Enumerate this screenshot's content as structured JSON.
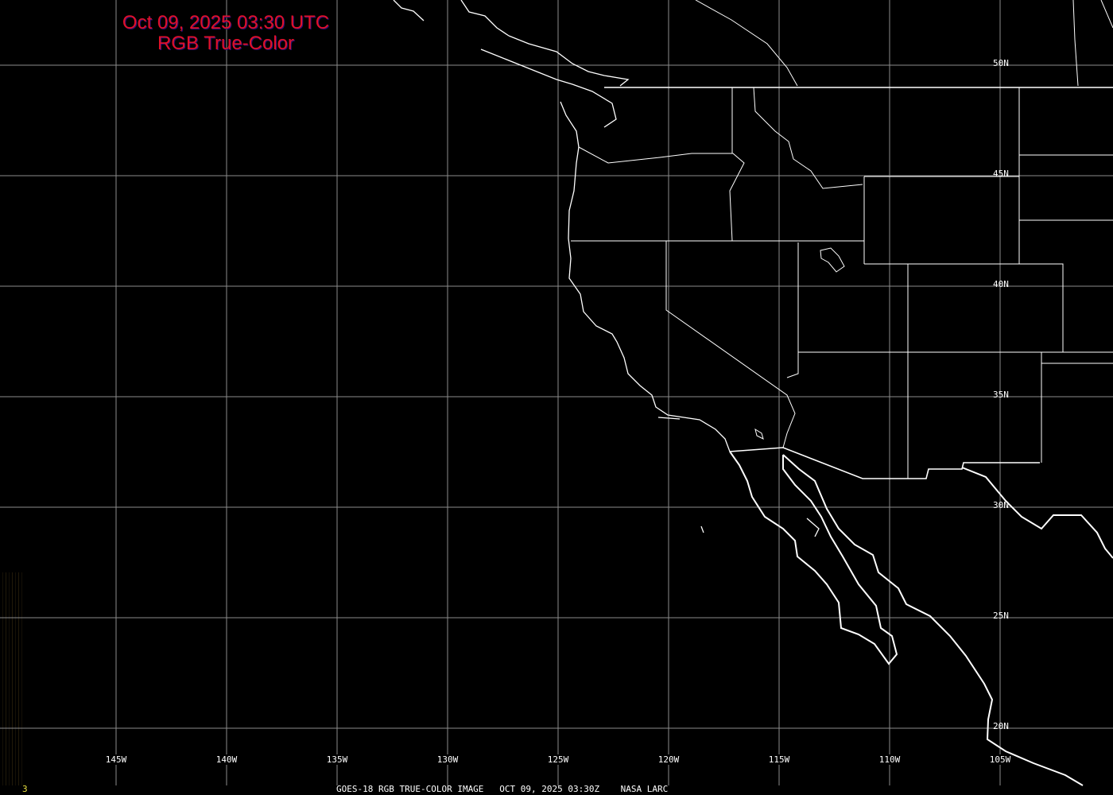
{
  "title": {
    "line1": "Oct 09, 2025 03:30 UTC",
    "line2": "RGB True-Color",
    "color": "#e0102a"
  },
  "caption": "GOES-18 RGB TRUE-COLOR IMAGE   OCT 09, 2025 03:30Z    NASA LARC",
  "frame_number": "3",
  "grid": {
    "longitudes": [
      "145W",
      "140W",
      "135W",
      "130W",
      "125W",
      "120W",
      "115W",
      "110W",
      "105W"
    ],
    "latitudes": [
      "50N",
      "45N",
      "40N",
      "35N",
      "30N",
      "25N",
      "20N"
    ],
    "grid_color": "#8c8c8c",
    "boundary_color": "#ffffff"
  }
}
